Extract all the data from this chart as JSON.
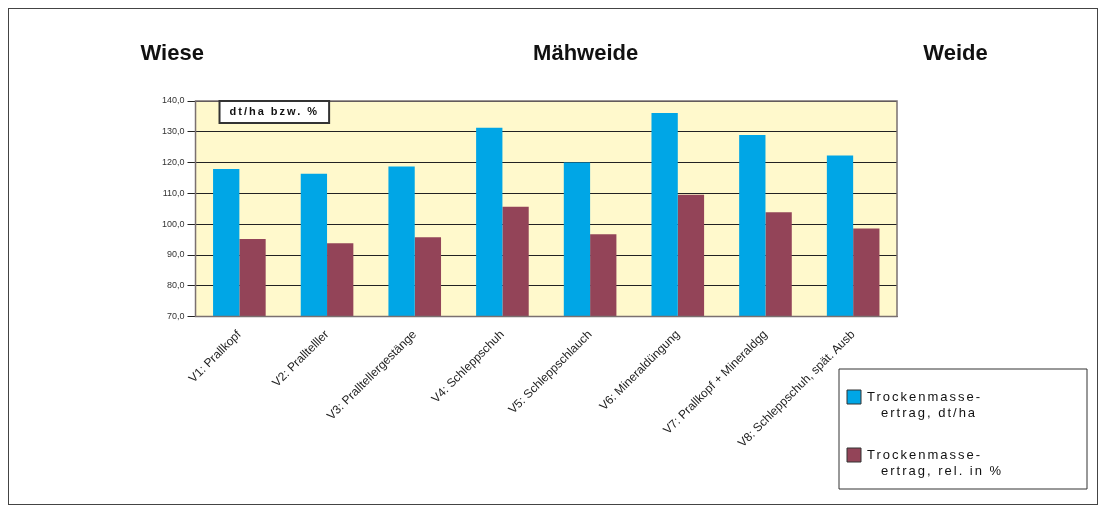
{
  "chart_data": {
    "type": "bar",
    "ylabel": "dt/ha bzw. %",
    "annotations": [
      "Wiese",
      "Mähweide",
      "Weide"
    ],
    "categories": [
      "V1: Prallkopf",
      "V2: Pralltelller",
      "V3: Pralltellergestänge",
      "V4: Schleppschuh",
      "V5: Schleppschlauch",
      "V6: Mineraldüngung",
      "V7: Prallkopf + Mineraldgg",
      "V8: Schleppschuh, spät. Ausb"
    ],
    "series": [
      {
        "name": "Trockenmasse-ertrag, dt/ha",
        "color": "#00a6e6",
        "values": [
          117.9,
          116.4,
          118.7,
          131.3,
          120.0,
          136.1,
          129.0,
          122.3
        ]
      },
      {
        "name": "Trockenmasse-ertrag, rel. in %",
        "color": "#934458",
        "values": [
          95.2,
          93.8,
          95.8,
          105.7,
          96.7,
          109.6,
          103.9,
          98.6
        ]
      }
    ],
    "ylim": [
      70,
      140
    ],
    "yticks": [
      {
        "value": 70,
        "label": "70,0"
      },
      {
        "value": 80,
        "label": "80,0"
      },
      {
        "value": 90,
        "label": "90,0"
      },
      {
        "value": 100,
        "label": "100,0"
      },
      {
        "value": 110,
        "label": "110,0"
      },
      {
        "value": 120,
        "label": "120,0"
      },
      {
        "value": 130,
        "label": "130,0"
      },
      {
        "value": 140,
        "label": "140,0"
      }
    ],
    "grid": "y",
    "legend": "bottom right"
  }
}
